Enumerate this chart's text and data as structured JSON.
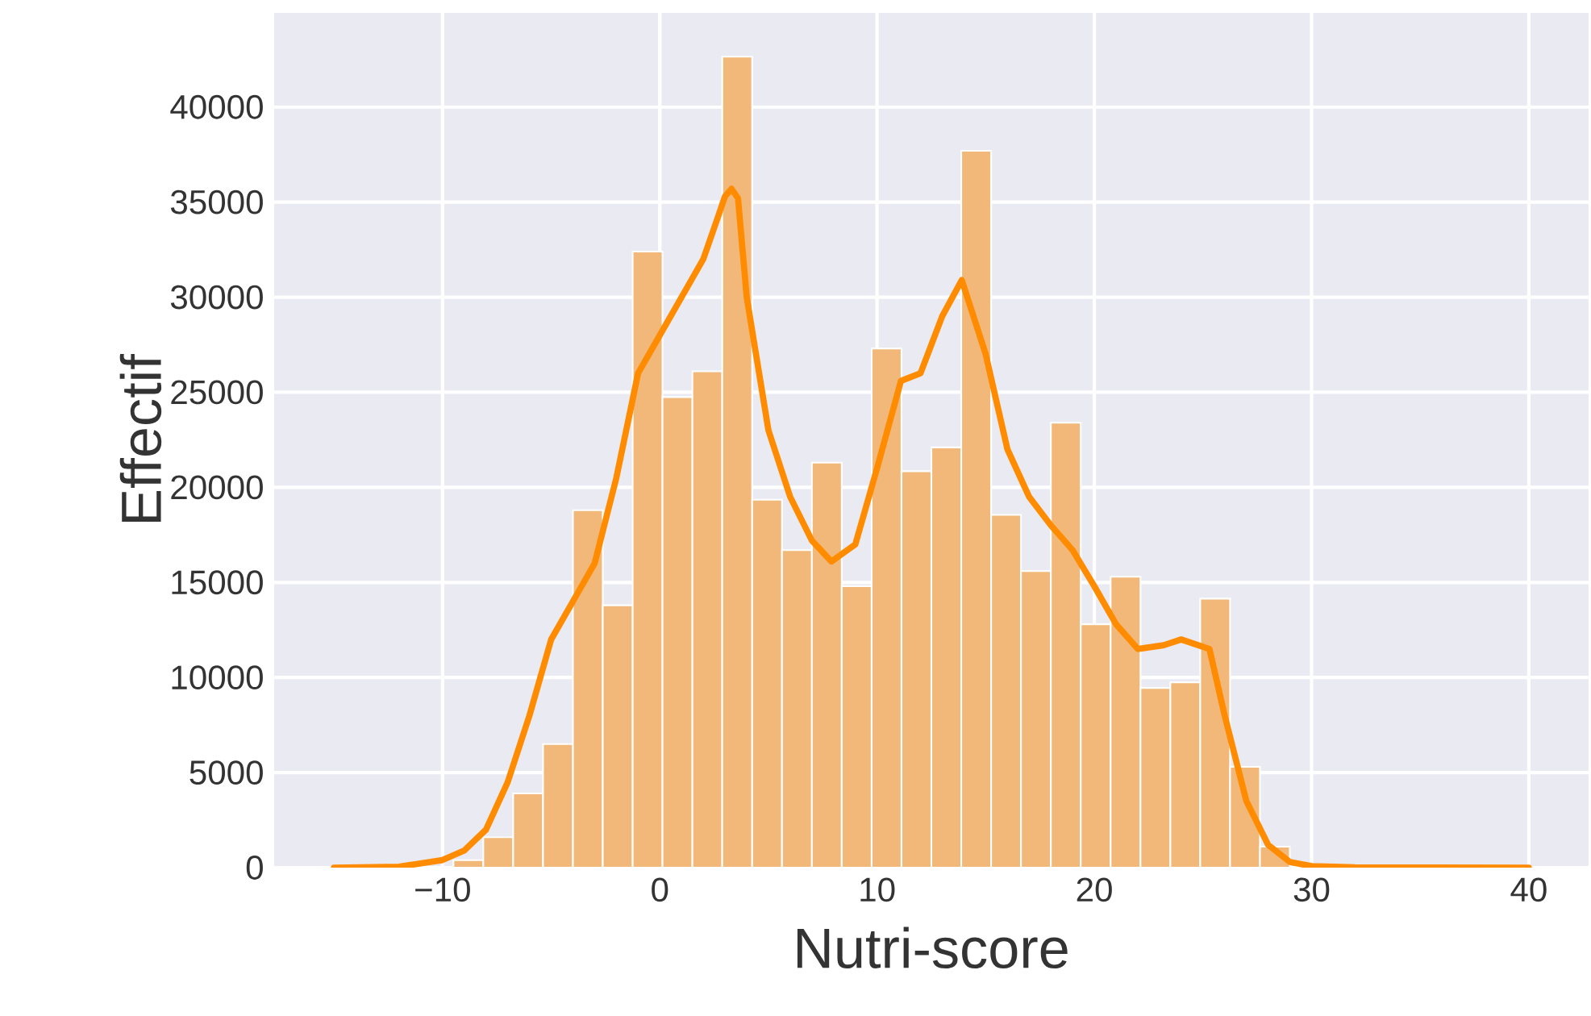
{
  "chart_data": {
    "type": "histogram",
    "xlabel": "Nutri-score",
    "ylabel": "Effectif",
    "xlim": [
      -17.75,
      42.75
    ],
    "ylim": [
      0,
      44950
    ],
    "xticks": [
      {
        "value": -10,
        "label": "−10"
      },
      0,
      10,
      20,
      30,
      40
    ],
    "yticks": [
      0,
      5000,
      10000,
      15000,
      20000,
      25000,
      30000,
      35000,
      40000
    ],
    "grid": true,
    "bins": [
      -15,
      -13.625,
      -12.25,
      -10.875,
      -9.5,
      -8.125,
      -6.75,
      -5.375,
      -4,
      -2.625,
      -1.25,
      0.125,
      1.5,
      2.875,
      4.25,
      5.625,
      7,
      8.375,
      9.75,
      11.125,
      12.5,
      13.875,
      15.25,
      16.625,
      18,
      19.375,
      20.75,
      22.125,
      23.5,
      24.875,
      26.25,
      27.625,
      29,
      30.375,
      31.75,
      33.125,
      34.5,
      35.875,
      37.25,
      38.625,
      40
    ],
    "series": [
      {
        "color": "#f2b87a",
        "values": [
          0,
          0,
          0,
          0,
          400,
          1600,
          3900,
          6500,
          18800,
          13800,
          32400,
          24750,
          26100,
          42650,
          19350,
          16700,
          21300,
          14800,
          27300,
          20850,
          22100,
          37700,
          18550,
          15600,
          23400,
          12800,
          15300,
          9450,
          9750,
          14150,
          5300,
          1100,
          0,
          0,
          0,
          0,
          0,
          0,
          0,
          0
        ]
      },
      {
        "type": "line",
        "color": "#ff8c00",
        "x": [
          -15,
          -12,
          -10,
          -9,
          -8,
          -7,
          -6,
          -5,
          -4,
          -3,
          -2,
          -1,
          0,
          1,
          2,
          2.7,
          3,
          3.3,
          3.6,
          4,
          5,
          6,
          7,
          7.9,
          9,
          10,
          11.1,
          12,
          13,
          13.9,
          15,
          16,
          17,
          18,
          19,
          20,
          21,
          22,
          23.2,
          24,
          25.3,
          26,
          27,
          28,
          29,
          30,
          32,
          40
        ],
        "values": [
          0,
          50,
          400,
          900,
          2000,
          4500,
          8000,
          12000,
          14000,
          16000,
          20500,
          26000,
          28000,
          30000,
          32000,
          34300,
          35300,
          35700,
          35200,
          30000,
          23000,
          19500,
          17200,
          16100,
          17000,
          21000,
          25600,
          26000,
          29000,
          30900,
          27000,
          22000,
          19500,
          18000,
          16700,
          14800,
          12800,
          11500,
          11700,
          12000,
          11500,
          8000,
          3500,
          1200,
          300,
          80,
          20,
          0
        ]
      }
    ]
  }
}
